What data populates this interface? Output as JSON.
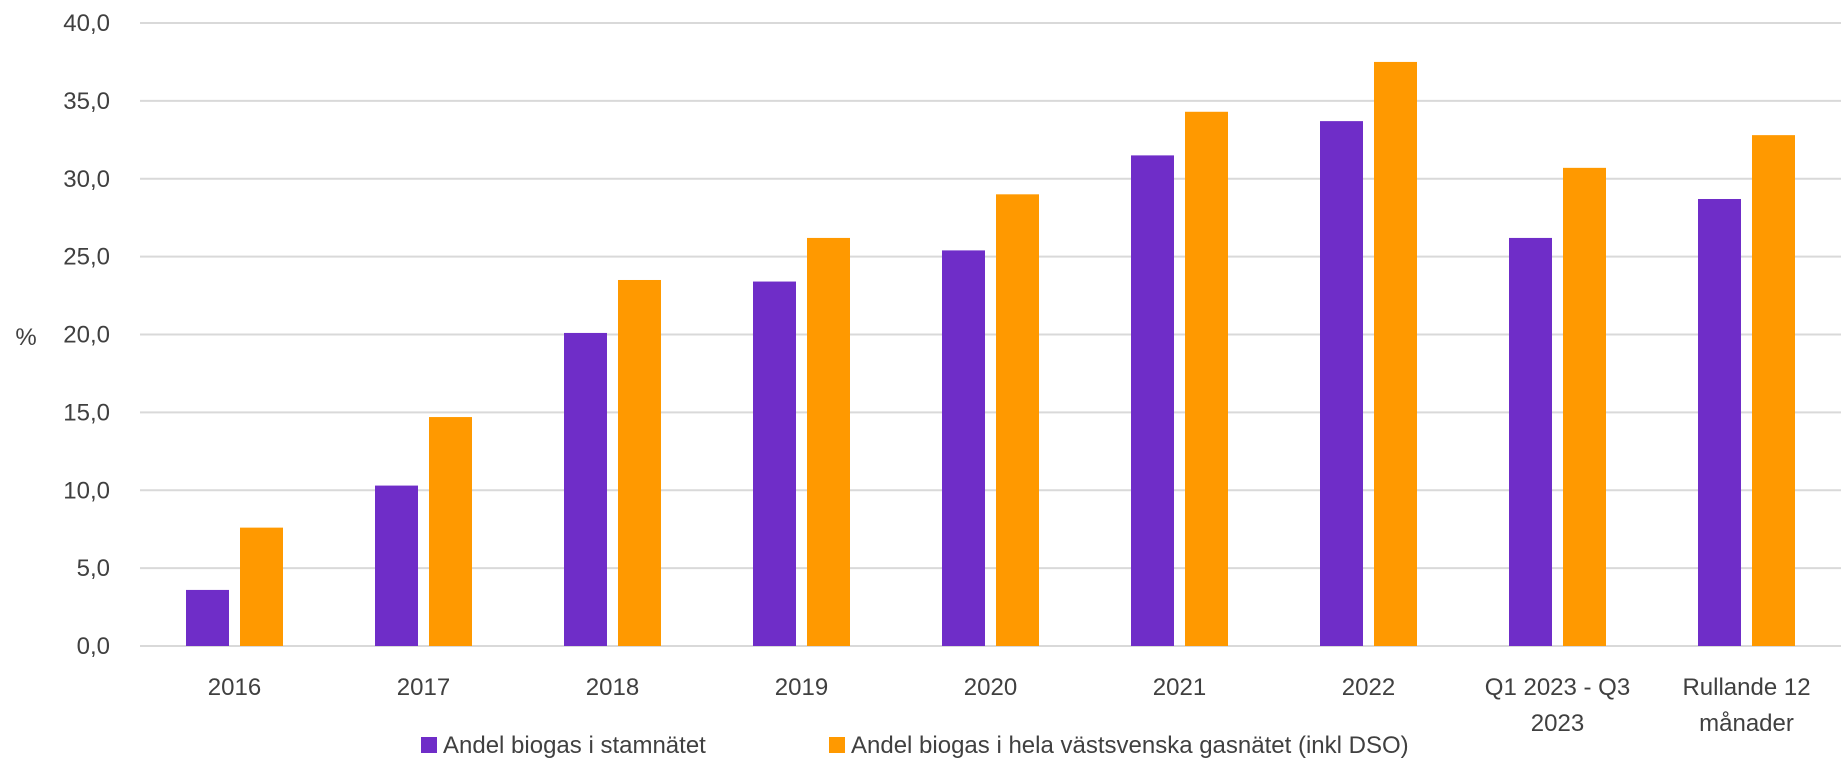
{
  "chart_data": {
    "type": "bar",
    "ylabel": "%",
    "ylim": [
      0,
      40
    ],
    "ytick_step": 5,
    "ytick_labels": [
      "0,0",
      "5,0",
      "10,0",
      "15,0",
      "20,0",
      "25,0",
      "30,0",
      "35,0",
      "40,0"
    ],
    "grid": true,
    "legend_position": "bottom",
    "categories": [
      [
        "2016"
      ],
      [
        "2017"
      ],
      [
        "2018"
      ],
      [
        "2019"
      ],
      [
        "2020"
      ],
      [
        "2021"
      ],
      [
        "2022"
      ],
      [
        "Q1 2023 - Q3",
        "2023"
      ],
      [
        "Rullande 12",
        "månader"
      ]
    ],
    "series": [
      {
        "name": "Andel biogas i stamnätet",
        "color": "#6f2dc8",
        "values": [
          3.6,
          10.3,
          20.1,
          23.4,
          25.4,
          31.5,
          33.7,
          26.2,
          28.7
        ]
      },
      {
        "name": "Andel biogas i hela västsvenska gasnätet (inkl DSO)",
        "color": "#ff9900",
        "values": [
          7.6,
          14.7,
          23.5,
          26.2,
          29.0,
          34.3,
          37.5,
          30.7,
          32.8
        ]
      }
    ]
  }
}
